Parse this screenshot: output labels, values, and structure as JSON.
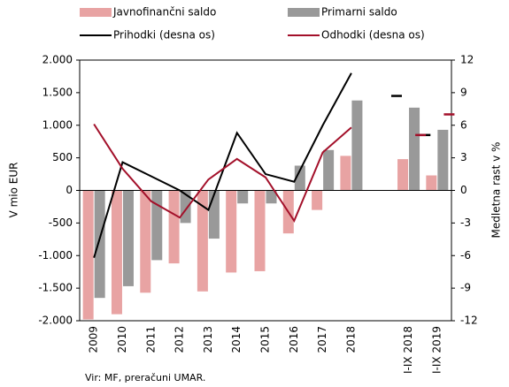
{
  "chart_data": {
    "type": "bar",
    "categories": [
      "2009",
      "2010",
      "2011",
      "2012",
      "2013",
      "2014",
      "2015",
      "2016",
      "2017",
      "2018",
      null,
      "I-IX 2018",
      "I-IX 2019"
    ],
    "series": [
      {
        "name": "Javnofinančni saldo",
        "color": "#e8a3a3",
        "type": "bar",
        "values": [
          -1980,
          -1900,
          -1570,
          -1120,
          -1550,
          -1260,
          -1240,
          -660,
          -300,
          530,
          null,
          480,
          230
        ]
      },
      {
        "name": "Primarni saldo",
        "color": "#999999",
        "type": "bar",
        "values": [
          -1650,
          -1470,
          -1070,
          -500,
          -740,
          -200,
          -200,
          380,
          620,
          1380,
          null,
          1270,
          930
        ]
      },
      {
        "name": "Prihodki (desna os)",
        "color": "#000000",
        "type": "line",
        "axis": "y2",
        "values": [
          -6.2,
          2.6,
          1.3,
          0.0,
          -1.8,
          5.3,
          1.5,
          0.8,
          6.0,
          10.8,
          null,
          8.7,
          5.1
        ]
      },
      {
        "name": "Odhodki (desna os)",
        "color": "#a3102a",
        "type": "line",
        "axis": "y2",
        "values": [
          6.1,
          2.0,
          -1.0,
          -2.5,
          1.0,
          2.9,
          1.2,
          -2.8,
          3.5,
          5.8,
          null,
          5.1,
          7.0
        ]
      }
    ],
    "ylabel": "V mio EUR",
    "y2label": "Medletna rast v %",
    "ylim": [
      -2000,
      2000
    ],
    "yticks": [
      {
        "value": -2000,
        "label": "-2.000"
      },
      {
        "value": -1500,
        "label": "-1.500"
      },
      {
        "value": -1000,
        "label": "-1.000"
      },
      -500,
      0,
      500,
      {
        "value": 1000,
        "label": "1.000"
      },
      {
        "value": 1500,
        "label": "1.500"
      },
      {
        "value": 2000,
        "label": "2.000"
      }
    ],
    "y2lim": [
      -12,
      12
    ],
    "y2ticks": [
      -12,
      -9,
      -6,
      -3,
      0,
      3,
      6,
      9,
      12
    ],
    "note": "Vir: MF, preračuni UMAR.",
    "legend": "top"
  }
}
